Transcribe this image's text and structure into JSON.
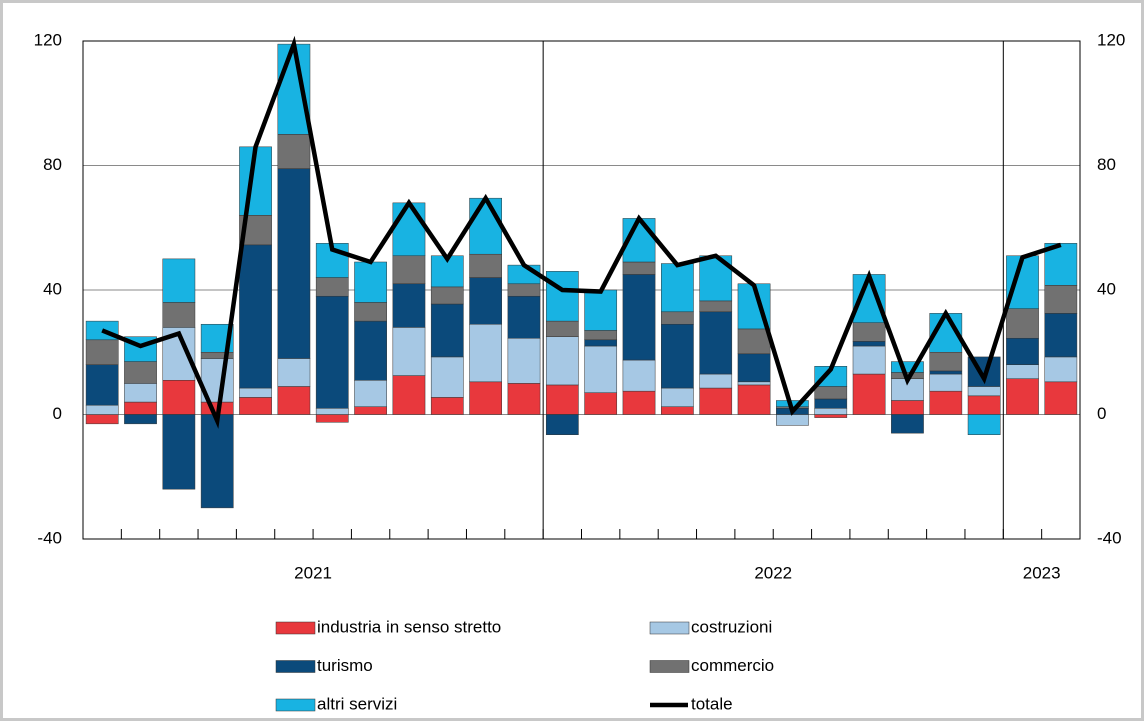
{
  "chart_data": {
    "type": "bar",
    "stacked": true,
    "categories": [
      null,
      null,
      null,
      null,
      null,
      null,
      null,
      null,
      null,
      null,
      null,
      null,
      null,
      null,
      null,
      null,
      null,
      null,
      null,
      null,
      null,
      null,
      null,
      null,
      null,
      null
    ],
    "groups": [
      {
        "label": "2021",
        "count": 12
      },
      {
        "label": "2022",
        "count": 12
      },
      {
        "label": "2023",
        "count": 2
      }
    ],
    "series": [
      {
        "name": "industria in senso stretto",
        "color": "#e8383d",
        "values": [
          -3,
          4,
          11,
          4,
          5.5,
          9,
          -2.5,
          2.5,
          12.5,
          5.5,
          10.5,
          10,
          9.5,
          7,
          7.5,
          2.5,
          8.5,
          9.5,
          0,
          -1,
          13,
          4.5,
          7.5,
          6,
          11.5,
          10.5
        ]
      },
      {
        "name": "costruzioni",
        "color": "#a6c8e4",
        "values": [
          3,
          6,
          17,
          14,
          3,
          9,
          2,
          8.5,
          15.5,
          13,
          18.5,
          14.5,
          15.5,
          15,
          10,
          6,
          4.5,
          1,
          -3.5,
          2,
          9,
          7,
          5.5,
          3,
          4.5,
          8
        ]
      },
      {
        "name": "turismo",
        "color": "#0b4a7b",
        "values": [
          13,
          -3,
          -24,
          -30,
          46,
          61,
          36,
          19,
          14,
          17,
          15,
          13.5,
          -6.5,
          2,
          27.5,
          20.5,
          20,
          9,
          2,
          3,
          1.5,
          -6,
          1,
          9.5,
          8.5,
          14
        ]
      },
      {
        "name": "commercio",
        "color": "#717171",
        "values": [
          8,
          7,
          8,
          2,
          9.5,
          11,
          6,
          6,
          9,
          5.5,
          7.5,
          4,
          5,
          3,
          4,
          4,
          3.5,
          8,
          0.5,
          4,
          6,
          2,
          6,
          0,
          9.5,
          9
        ]
      },
      {
        "name": "altri servizi",
        "color": "#18b3e2",
        "values": [
          6,
          8,
          14,
          9,
          22,
          29,
          11,
          13,
          17,
          10,
          18,
          6,
          16,
          13,
          14,
          15.5,
          14.5,
          14.5,
          2,
          6.5,
          15.5,
          3.5,
          12.5,
          -6.5,
          17,
          13.5
        ]
      },
      {
        "name": "totale",
        "color": "#000000",
        "type": "line",
        "values": [
          27,
          22,
          26,
          -2,
          86,
          119,
          53,
          49,
          68,
          50,
          69.5,
          48,
          40,
          39.5,
          63,
          48,
          51,
          41.5,
          1,
          14.5,
          44.5,
          11,
          32.5,
          11.5,
          50.5,
          54.5
        ]
      }
    ],
    "ylim": [
      -40,
      120
    ],
    "yticks": [
      -40,
      0,
      40,
      80,
      120
    ],
    "y2lim": [
      -40,
      120
    ],
    "y2ticks": [
      -40,
      0,
      40,
      80,
      120
    ],
    "grid": true,
    "legend": "bottom"
  }
}
